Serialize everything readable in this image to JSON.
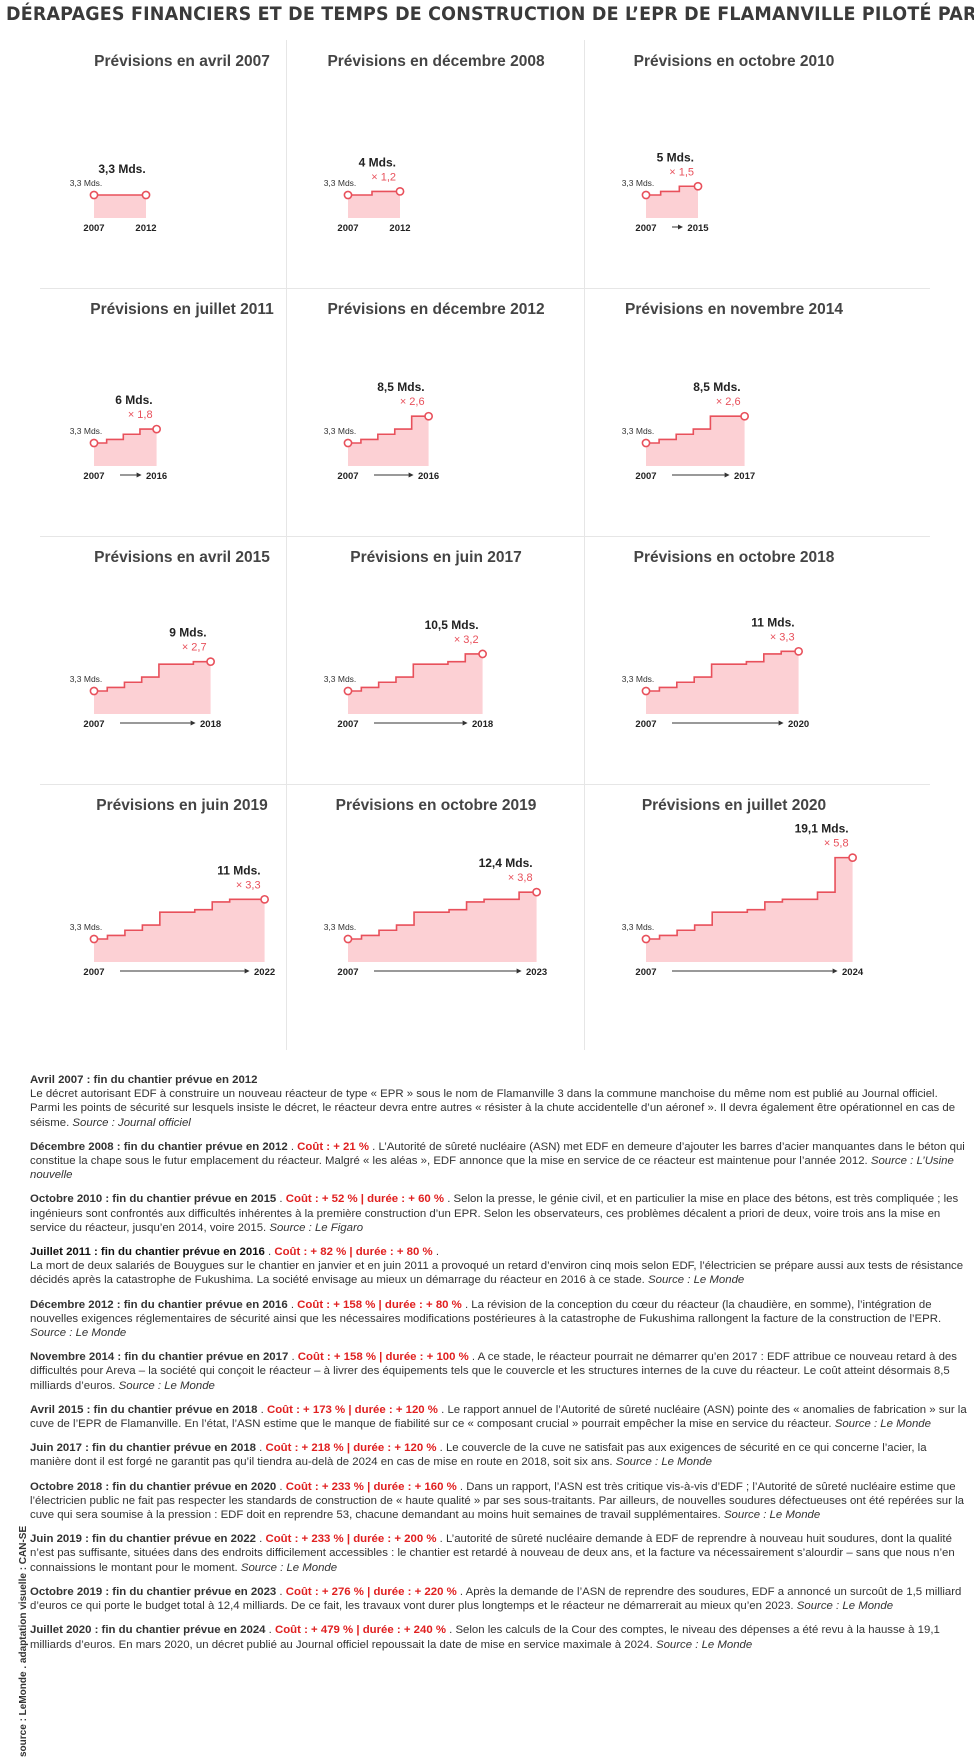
{
  "title": "DÉRAPAGES FINANCIERS ET DE TEMPS DE CONSTRUCTION DE L’EPR DE FLAMANVILLE PILOTÉ PAR EDF",
  "side_credit": "source : LeMonde . adaptation visuelle : CAN-SE",
  "colors": {
    "step_line": "#e8505b",
    "fill": "#fcd0d4",
    "marker": "#e8505b",
    "ratio_text": "#e8505b",
    "arrow": "#333333"
  },
  "chart_data": [
    {
      "type": "area",
      "title": "Prévisions en avril 2007",
      "start_label": "3,3 Mds.",
      "end_label": "3,3 Mds.",
      "ratio_label": "",
      "x_start": "2007",
      "x_end": "2012",
      "show_arrow": false,
      "steps": [
        3.3,
        3.3
      ],
      "ylim": [
        0,
        20
      ]
    },
    {
      "type": "area",
      "title": "Prévisions en décembre 2008",
      "start_label": "3,3 Mds.",
      "end_label": "4 Mds.",
      "ratio_label": "× 1,2",
      "x_start": "2007",
      "x_end": "2012",
      "show_arrow": false,
      "steps": [
        3.3,
        4
      ],
      "ylim": [
        0,
        20
      ]
    },
    {
      "type": "area",
      "title": "Prévisions en octobre 2010",
      "start_label": "3,3 Mds.",
      "end_label": "5 Mds.",
      "ratio_label": "× 1,5",
      "x_start": "2007",
      "x_end": "2015",
      "show_arrow": true,
      "steps": [
        3.3,
        4,
        5
      ],
      "ylim": [
        0,
        20
      ]
    },
    {
      "type": "area",
      "title": "Prévisions en juillet 2011",
      "start_label": "3,3 Mds.",
      "end_label": "6 Mds.",
      "ratio_label": "× 1,8",
      "x_start": "2007",
      "x_end": "2016",
      "show_arrow": true,
      "steps": [
        3.3,
        4,
        5,
        6
      ],
      "ylim": [
        0,
        20
      ]
    },
    {
      "type": "area",
      "title": "Prévisions en décembre 2012",
      "start_label": "3,3 Mds.",
      "end_label": "8,5 Mds.",
      "ratio_label": "× 2,6",
      "x_start": "2007",
      "x_end": "2016",
      "show_arrow": true,
      "steps": [
        3.3,
        4,
        5,
        6,
        8.5
      ],
      "ylim": [
        0,
        20
      ]
    },
    {
      "type": "area",
      "title": "Prévisions en novembre 2014",
      "start_label": "3,3 Mds.",
      "end_label": "8,5 Mds.",
      "ratio_label": "× 2,6",
      "x_start": "2007",
      "x_end": "2017",
      "show_arrow": true,
      "steps": [
        3.3,
        4,
        5,
        6,
        8.5,
        8.5
      ],
      "ylim": [
        0,
        20
      ]
    },
    {
      "type": "area",
      "title": "Prévisions en avril 2015",
      "start_label": "3,3 Mds.",
      "end_label": "9 Mds.",
      "ratio_label": "× 2,7",
      "x_start": "2007",
      "x_end": "2018",
      "show_arrow": true,
      "steps": [
        3.3,
        4,
        5,
        6,
        8.5,
        8.5,
        9
      ],
      "ylim": [
        0,
        20
      ]
    },
    {
      "type": "area",
      "title": "Prévisions en juin 2017",
      "start_label": "3,3 Mds.",
      "end_label": "10,5 Mds.",
      "ratio_label": "× 3,2",
      "x_start": "2007",
      "x_end": "2018",
      "show_arrow": true,
      "steps": [
        3.3,
        4,
        5,
        6,
        8.5,
        8.5,
        9,
        10.5
      ],
      "ylim": [
        0,
        20
      ]
    },
    {
      "type": "area",
      "title": "Prévisions en octobre 2018",
      "start_label": "3,3 Mds.",
      "end_label": "11 Mds.",
      "ratio_label": "× 3,3",
      "x_start": "2007",
      "x_end": "2020",
      "show_arrow": true,
      "steps": [
        3.3,
        4,
        5,
        6,
        8.5,
        8.5,
        9,
        10.5,
        11
      ],
      "ylim": [
        0,
        20
      ]
    },
    {
      "type": "area",
      "title": "Prévisions en juin 2019",
      "start_label": "3,3 Mds.",
      "end_label": "11 Mds.",
      "ratio_label": "× 3,3",
      "x_start": "2007",
      "x_end": "2022",
      "show_arrow": true,
      "steps": [
        3.3,
        4,
        5,
        6,
        8.5,
        8.5,
        9,
        10.5,
        11,
        11
      ],
      "ylim": [
        0,
        20
      ]
    },
    {
      "type": "area",
      "title": "Prévisions en octobre 2019",
      "start_label": "3,3 Mds.",
      "end_label": "12,4 Mds.",
      "ratio_label": "× 3,8",
      "x_start": "2007",
      "x_end": "2023",
      "show_arrow": true,
      "steps": [
        3.3,
        4,
        5,
        6,
        8.5,
        8.5,
        9,
        10.5,
        11,
        11,
        12.4
      ],
      "ylim": [
        0,
        20
      ]
    },
    {
      "type": "area",
      "title": "Prévisions en juillet 2020",
      "start_label": "3,3 Mds.",
      "end_label": "19,1 Mds.",
      "ratio_label": "× 5,8",
      "x_start": "2007",
      "x_end": "2024",
      "show_arrow": true,
      "steps": [
        3.3,
        4,
        5,
        6,
        8.5,
        8.5,
        9,
        10.5,
        11,
        11,
        12.4,
        19.1
      ],
      "ylim": [
        0,
        20
      ]
    }
  ],
  "notes": [
    {
      "head": "Avril 2007 : fin du chantier prévue en 2012",
      "dark": false,
      "red": "",
      "text": "Le décret autorisant EDF à construire un nouveau réacteur de type « EPR » sous le nom de Flamanville 3 dans la commune manchoise du même nom est publié au Journal officiel. Parmi les points de sécurité sur lesquels insiste le décret, le réacteur devra entre autres « résister à la chute accidentelle d’un aéronef ». Il devra également être opérationnel en cas de séisme.",
      "source": "Source : Journal officiel",
      "block": true
    },
    {
      "head": "Décembre 2008 : fin du chantier prévue en 2012",
      "dark": false,
      "red": "Coût : + 21 %",
      "text": "L’Autorité de sûreté nucléaire (ASN) met EDF en demeure d’ajouter les barres d’acier manquantes dans le béton qui constitue la chape sous le futur emplacement du réacteur. Malgré « les aléas », EDF annonce que la mise en service de ce réacteur est maintenue pour l’année 2012.",
      "source": "Source : L’Usine nouvelle",
      "block": false
    },
    {
      "head": "Octobre 2010 : fin du chantier prévue en 2015",
      "dark": false,
      "red": "Coût : + 52 % | durée : + 60 %",
      "text": "Selon la presse, le génie civil, et en particulier la mise en place des bétons, est très compliquée ; les ingénieurs sont confrontés aux difficultés inhérentes à la première construction d’un EPR. Selon les observateurs, ces problèmes décalent a priori de deux, voire trois ans la mise en service du réacteur, jusqu’en 2014, voire 2015.",
      "source": "Source : Le Figaro",
      "block": false
    },
    {
      "head": "Juillet 2011 : fin du chantier prévue en 2016",
      "dark": true,
      "red": "Coût : + 82 % | durée : + 80 %",
      "text": "La mort de deux salariés de Bouygues sur le chantier en janvier et en juin 2011 a provoqué un retard d’environ cinq mois selon EDF, l’électricien se prépare aussi aux tests de résistance décidés après la catastrophe de Fukushima. La société envisage au mieux un démarrage du réacteur en 2016 à ce stade.",
      "source": "Source : Le Monde",
      "block": true
    },
    {
      "head": "Décembre 2012 : fin du chantier prévue en 2016",
      "dark": false,
      "red": "Coût : + 158 % | durée : + 80 %",
      "text": "La révision de la conception du cœur du réacteur (la chaudière, en somme), l’intégration de nouvelles exigences réglementaires de sécurité ainsi que les nécessaires modifications postérieures à la catastrophe de Fukushima rallongent la facture de la construction de l’EPR.",
      "source": "Source : Le Monde",
      "block": false
    },
    {
      "head": "Novembre 2014 : fin du chantier prévue en 2017",
      "dark": false,
      "red": "Coût : + 158 % | durée : + 100 %",
      "text": "A ce stade, le réacteur pourrait ne démarrer qu’en 2017 : EDF attribue ce nouveau retard à des difficultés pour Areva – la société qui conçoit le réacteur – à livrer des équipements tels que le couvercle et les structures internes de la cuve du réacteur. Le coût atteint désormais 8,5 milliards d’euros.",
      "source": "Source : Le Monde",
      "block": false
    },
    {
      "head": "Avril 2015 : fin du chantier prévue en 2018",
      "dark": false,
      "red": "Coût : + 173 % | durée : + 120 %",
      "text": "Le rapport annuel de l’Autorité de sûreté nucléaire (ASN) pointe des « anomalies de fabrication » sur la cuve de l’EPR de Flamanville. En l’état, l’ASN estime que le manque de fiabilité sur ce « composant crucial » pourrait empêcher la mise en service du réacteur.",
      "source": "Source : Le Monde",
      "block": false
    },
    {
      "head": "Juin 2017 : fin du chantier prévue en 2018",
      "dark": false,
      "red": "Coût : + 218 % | durée : + 120 %",
      "text": "Le couvercle de la cuve ne satisfait pas aux exigences de sécurité en ce qui concerne l’acier, la manière dont il est forgé ne garantit pas qu’il tiendra au-delà de 2024 en cas de mise en route en 2018, soit six ans.",
      "source": "Source : Le Monde",
      "block": false
    },
    {
      "head": "Octobre 2018 : fin du chantier prévue en 2020",
      "dark": false,
      "red": "Coût : + 233 % | durée : + 160 %",
      "text": "Dans un rapport, l’ASN est très critique vis-à-vis d’EDF ; l’Autorité de sûreté nucléaire estime que l’électricien public ne fait pas respecter les standards de construction de « haute qualité » par ses sous-traitants. Par ailleurs, de nouvelles soudures défectueuses ont été repérées sur la cuve qui sera soumise à la pression : EDF doit en reprendre 53, chacune demandant au moins huit semaines de travail supplémentaires.",
      "source": "Source : Le Monde",
      "block": false
    },
    {
      "head": "Juin 2019 : fin du chantier prévue en 2022",
      "dark": false,
      "red": "Coût : + 233 % | durée : + 200 %",
      "text": "L’autorité de sûreté nucléaire demande à EDF de reprendre à nouveau huit soudures, dont la qualité n’est pas suffisante, situées dans des endroits difficilement accessibles : le chantier est retardé à nouveau de deux ans, et la facture va nécessairement s’alourdir – sans que nous n’en connaissions le montant pour le moment.",
      "source": "Source : Le Monde",
      "block": false
    },
    {
      "head": "Octobre 2019 : fin du chantier prévue en 2023",
      "dark": false,
      "red": "Coût : + 276 % | durée : + 220 %",
      "text": "Après la demande de l’ASN de reprendre des soudures, EDF a annoncé un surcoût de 1,5 milliard d’euros ce qui porte le budget total à 12,4 milliards. De ce fait, les travaux vont durer plus longtemps et le réacteur ne démarrerait au mieux qu’en 2023.",
      "source": "Source : Le Monde",
      "block": false
    },
    {
      "head": "Juillet 2020 : fin du chantier prévue en 2024",
      "dark": false,
      "red": "Coût : + 479 % | durée : + 240 %",
      "text": "Selon les calculs de la Cour des comptes, le niveau des dépenses a été revu à la hausse à 19,1 milliards d’euros. En mars 2020, un décret publié au Journal officiel repoussait la date de mise en service maximale à 2024.",
      "source": "Source : Le Monde",
      "block": false
    }
  ]
}
